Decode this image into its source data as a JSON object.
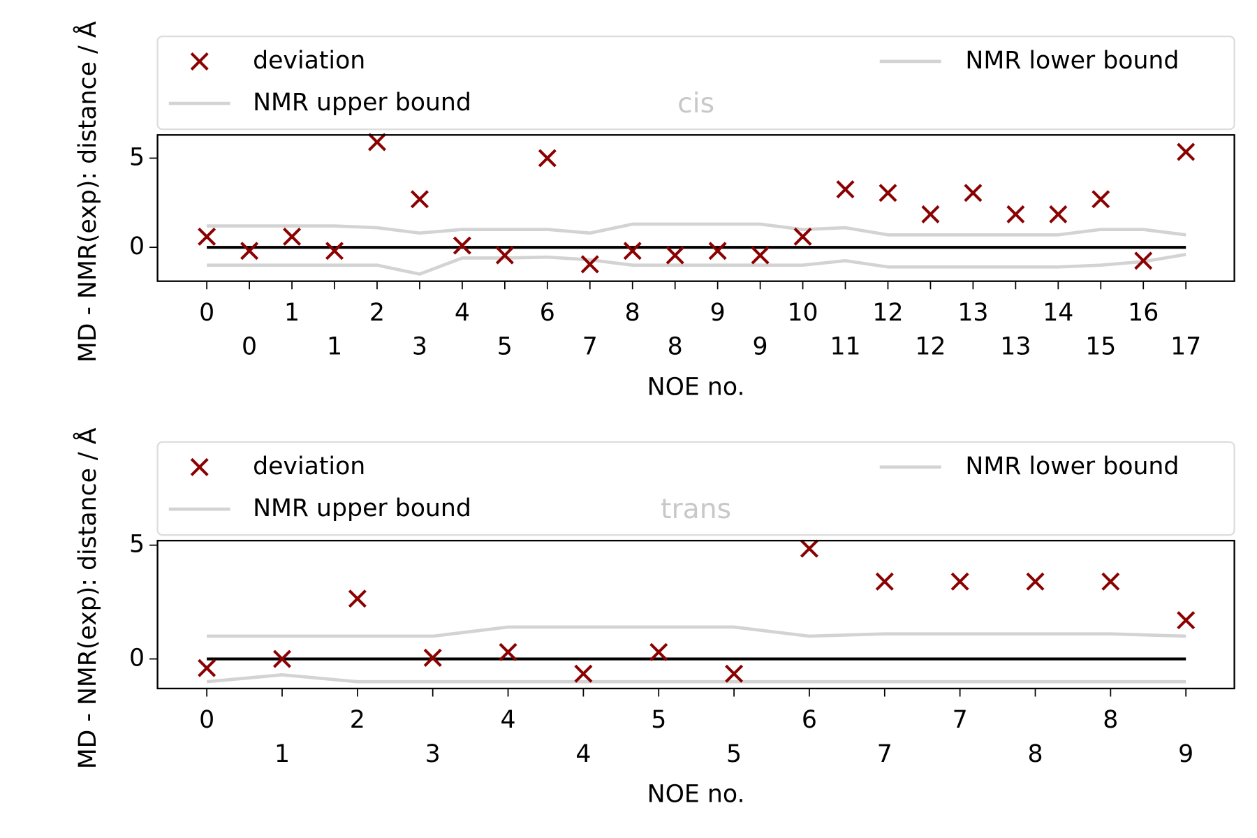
{
  "chart_data": [
    {
      "type": "scatter",
      "title": "cis",
      "xlabel": "NOE no.",
      "ylabel": "MD - NMR(exp): distance / Å",
      "categories": [
        "0",
        "0",
        "1",
        "1",
        "2",
        "3",
        "4",
        "5",
        "6",
        "7",
        "8",
        "8",
        "9",
        "9",
        "10",
        "11",
        "12",
        "12",
        "13",
        "13",
        "14",
        "15",
        "16",
        "17"
      ],
      "ylim": [
        -1.9,
        6.3
      ],
      "yticks": [
        0,
        5
      ],
      "hline": 0,
      "legend": "upper",
      "series": [
        {
          "name": "deviation",
          "type": "scatter",
          "color": "#8b0000",
          "values": [
            0.6,
            -0.2,
            0.6,
            -0.2,
            5.9,
            2.7,
            0.1,
            -0.45,
            5.0,
            -0.95,
            -0.2,
            -0.45,
            -0.2,
            -0.45,
            0.6,
            3.25,
            3.05,
            1.85,
            3.05,
            1.85,
            1.85,
            2.7,
            -0.75,
            5.35
          ]
        },
        {
          "name": "NMR upper bound",
          "type": "line",
          "color": "#d3d3d3",
          "values": [
            1.2,
            1.2,
            1.2,
            1.2,
            1.1,
            0.8,
            1.0,
            1.0,
            1.0,
            0.8,
            1.3,
            1.3,
            1.3,
            1.3,
            1.0,
            1.1,
            0.7,
            0.7,
            0.7,
            0.7,
            0.7,
            1.0,
            1.0,
            0.7
          ]
        },
        {
          "name": "NMR lower bound",
          "type": "line",
          "color": "#d3d3d3",
          "values": [
            -1.0,
            -1.0,
            -1.0,
            -1.0,
            -1.0,
            -1.5,
            -0.6,
            -0.6,
            -0.55,
            -0.7,
            -1.0,
            -1.0,
            -1.0,
            -1.0,
            -1.0,
            -0.75,
            -1.1,
            -1.1,
            -1.1,
            -1.1,
            -1.1,
            -1.0,
            -0.8,
            -0.4
          ]
        }
      ]
    },
    {
      "type": "scatter",
      "title": "trans",
      "xlabel": "NOE no.",
      "ylabel": "MD - NMR(exp): distance / Å",
      "categories": [
        "0",
        "1",
        "2",
        "3",
        "4",
        "4",
        "5",
        "5",
        "6",
        "7",
        "7",
        "8",
        "8",
        "9"
      ],
      "ylim": [
        -1.3,
        5.2
      ],
      "yticks": [
        0,
        5
      ],
      "hline": 0,
      "legend": "upper",
      "series": [
        {
          "name": "deviation",
          "type": "scatter",
          "color": "#8b0000",
          "values": [
            -0.4,
            0,
            2.65,
            0.05,
            0.3,
            -0.65,
            0.3,
            -0.65,
            4.85,
            3.4,
            3.4,
            3.4,
            3.4,
            1.7
          ]
        },
        {
          "name": "NMR upper bound",
          "type": "line",
          "color": "#d3d3d3",
          "values": [
            1.0,
            1.0,
            1.0,
            1.0,
            1.4,
            1.4,
            1.4,
            1.4,
            1.0,
            1.1,
            1.1,
            1.1,
            1.1,
            1.0
          ]
        },
        {
          "name": "NMR lower bound",
          "type": "line",
          "color": "#d3d3d3",
          "values": [
            -1.0,
            -0.7,
            -1.0,
            -1.0,
            -1.0,
            -1.0,
            -1.0,
            -1.0,
            -1.0,
            -1.0,
            -1.0,
            -1.0,
            -1.0,
            -1.0
          ]
        }
      ]
    }
  ]
}
